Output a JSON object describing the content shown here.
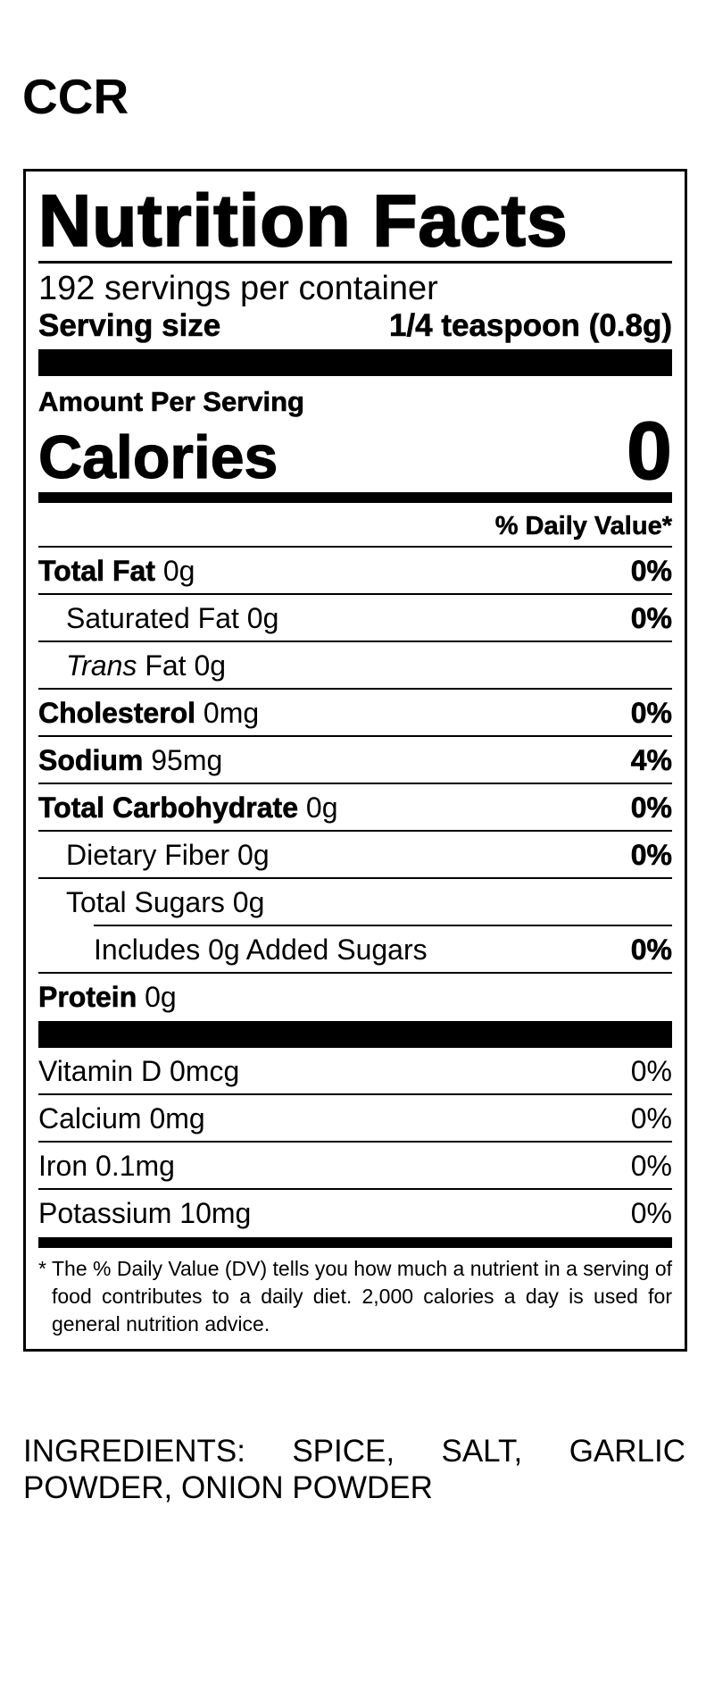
{
  "brand": "CCR",
  "label": {
    "heading": "Nutrition Facts",
    "servings": "192 servings per container",
    "serving_size_label": "Serving size",
    "serving_size_value": "1/4 teaspoon (0.8g)",
    "amount_per_serving": "Amount Per Serving",
    "calories_label": "Calories",
    "calories_value": "0",
    "dv_header": "% Daily Value*",
    "nutrients": [
      {
        "name": "Total Fat",
        "amount": "0g",
        "dv": "0%",
        "bold": true,
        "indent": 0
      },
      {
        "name": "Saturated Fat",
        "amount": "0g",
        "dv": "0%",
        "bold": false,
        "indent": 1
      },
      {
        "name": "Trans",
        "amount": "Fat 0g",
        "bold": false,
        "italic": true,
        "indent": 1
      },
      {
        "name": "Cholesterol",
        "amount": "0mg",
        "dv": "0%",
        "bold": true,
        "indent": 0
      },
      {
        "name": "Sodium",
        "amount": "95mg",
        "dv": "4%",
        "bold": true,
        "indent": 0
      },
      {
        "name": "Total Carbohydrate",
        "amount": "0g",
        "dv": "0%",
        "bold": true,
        "indent": 0
      },
      {
        "name": "Dietary Fiber",
        "amount": "0g",
        "dv": "0%",
        "bold": false,
        "indent": 1
      },
      {
        "name": "Total Sugars",
        "amount": "0g",
        "bold": false,
        "indent": 1,
        "rule_indent": 2
      },
      {
        "name": "Includes 0g Added Sugars",
        "dv": "0%",
        "bold": false,
        "indent": 2
      },
      {
        "name": "Protein",
        "amount": "0g",
        "bold": true,
        "indent": 0,
        "rule": false
      }
    ],
    "vitamins": [
      {
        "name": "Vitamin D 0mcg",
        "dv": "0%"
      },
      {
        "name": "Calcium 0mg",
        "dv": "0%"
      },
      {
        "name": "Iron 0.1mg",
        "dv": "0%"
      },
      {
        "name": "Potassium 10mg",
        "dv": "0%"
      }
    ],
    "footnote_marker": "*",
    "footnote": "The % Daily Value (DV) tells you how much a nutrient in a serving of food contributes to a daily diet. 2,000 calories a day is used for general nutrition advice."
  },
  "ingredients": "INGREDIENTS: SPICE, SALT, GARLIC POWDER, ONION POWDER"
}
